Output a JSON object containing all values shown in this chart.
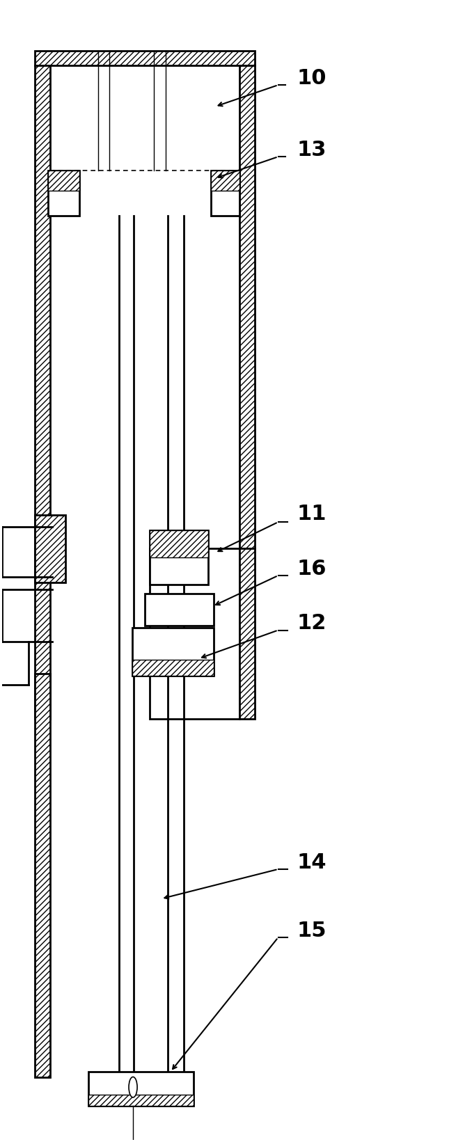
{
  "fig_width": 6.78,
  "fig_height": 16.41,
  "bg_color": "#ffffff",
  "line_color": "#000000",
  "lw_main": 2.0,
  "lw_thin": 1.0,
  "label_fontsize": 22
}
